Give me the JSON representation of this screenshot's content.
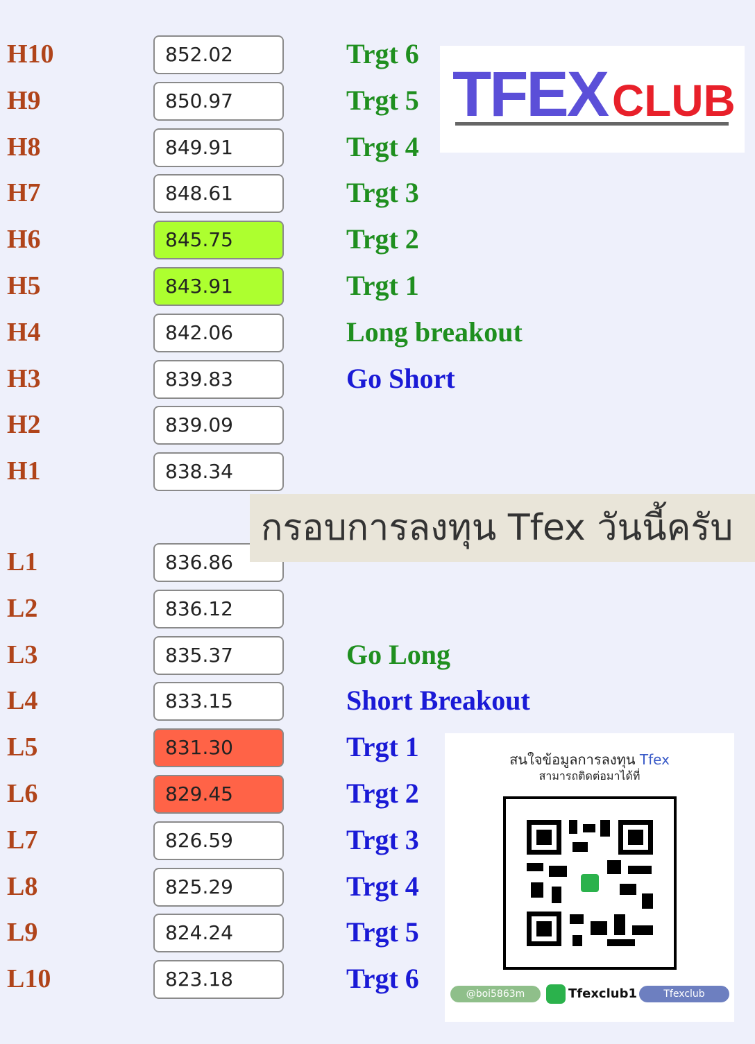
{
  "high_rows": [
    {
      "label": "H10",
      "value": "852.02",
      "note": "Trgt 6",
      "note_color": "#1f8f1f"
    },
    {
      "label": "H9",
      "value": "850.97",
      "note": "Trgt 5",
      "note_color": "#1f8f1f"
    },
    {
      "label": "H8",
      "value": "849.91",
      "note": "Trgt 4",
      "note_color": "#1f8f1f"
    },
    {
      "label": "H7",
      "value": "848.61",
      "note": "Trgt 3",
      "note_color": "#1f8f1f"
    },
    {
      "label": "H6",
      "value": "845.75",
      "box_color": "#adff2f",
      "note": "Trgt 2",
      "note_color": "#1f8f1f"
    },
    {
      "label": "H5",
      "value": "843.91",
      "box_color": "#adff2f",
      "note": "Trgt 1",
      "note_color": "#1f8f1f"
    },
    {
      "label": "H4",
      "value": "842.06",
      "note": "Long breakout",
      "note_color": "#1f8f1f"
    },
    {
      "label": "H3",
      "value": "839.83",
      "note": "Go Short",
      "note_color": "#1a1ad6"
    },
    {
      "label": "H2",
      "value": "839.09"
    },
    {
      "label": "H1",
      "value": "838.34"
    }
  ],
  "low_rows": [
    {
      "label": "L1",
      "value": "836.86"
    },
    {
      "label": "L2",
      "value": "836.12"
    },
    {
      "label": "L3",
      "value": "835.37",
      "note": "Go Long",
      "note_color": "#1f8f1f"
    },
    {
      "label": "L4",
      "value": "833.15",
      "note": "Short Breakout",
      "note_color": "#1a1ad6"
    },
    {
      "label": "L5",
      "value": "831.30",
      "box_color": "#ff6347",
      "note": "Trgt 1",
      "note_color": "#1a1ad6"
    },
    {
      "label": "L6",
      "value": "829.45",
      "box_color": "#ff6347",
      "note": "Trgt 2",
      "note_color": "#1a1ad6"
    },
    {
      "label": "L7",
      "value": "826.59",
      "note": "Trgt 3",
      "note_color": "#1a1ad6"
    },
    {
      "label": "L8",
      "value": "825.29",
      "note": "Trgt 4",
      "note_color": "#1a1ad6"
    },
    {
      "label": "L9",
      "value": "824.24",
      "note": "Trgt 5",
      "note_color": "#1a1ad6"
    },
    {
      "label": "L10",
      "value": "823.18",
      "note": "Trgt 6",
      "note_color": "#1a1ad6"
    }
  ],
  "logo": {
    "main": "TFEX",
    "sub": "CLUB"
  },
  "banner": "กรอบการลงทุน Tfex วันนี้ครับ",
  "contact": {
    "line1": "สนใจข้อมูลการลงทุน",
    "line1_brand": "Tfex",
    "line2": "สามารถติดต่อมาได้ที่",
    "handles": [
      "@boi5863m",
      "Tfexclub1",
      "Tfexclub"
    ]
  }
}
